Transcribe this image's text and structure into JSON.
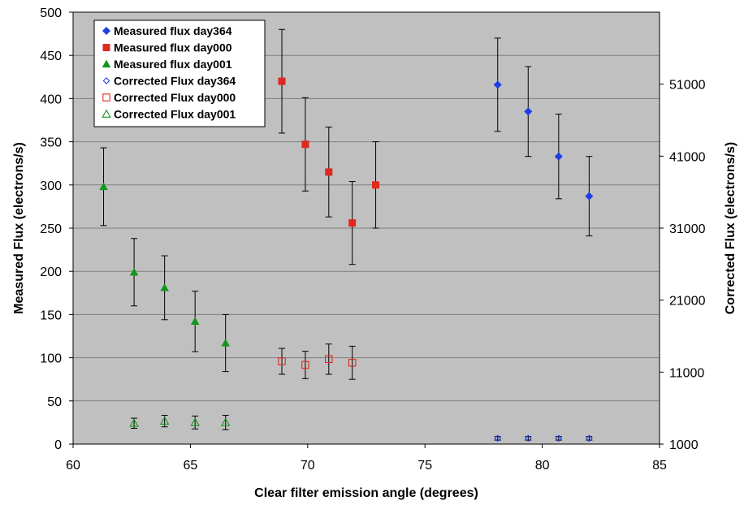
{
  "chart_data": {
    "type": "scatter",
    "xlabel": "Clear filter emission angle (degrees)",
    "ylabel": "Measured Flux (electrons/s)",
    "y2label": "Corrected Flux (electrons/s)",
    "xlim": [
      60,
      85
    ],
    "ylim": [
      0,
      500
    ],
    "y2lim": [
      1000,
      61000
    ],
    "x_ticks": [
      "60",
      "65",
      "70",
      "75",
      "80",
      "85"
    ],
    "y_ticks": [
      "0",
      "50",
      "100",
      "150",
      "200",
      "250",
      "300",
      "350",
      "400",
      "450",
      "500"
    ],
    "y2_ticks": [
      "1000",
      "11000",
      "21000",
      "31000",
      "41000",
      "51000"
    ],
    "grid": true,
    "plot_background": "#c0c0c0",
    "legend_position": "top-left",
    "series": [
      {
        "name": "Measured flux day364",
        "axis": "left",
        "marker": "diamond",
        "filled": true,
        "color": "#1f3fe6",
        "x": [
          78.1,
          79.4,
          80.7,
          82.0
        ],
        "y": [
          416,
          385,
          333,
          287
        ],
        "yerr": [
          54,
          52,
          49,
          46
        ]
      },
      {
        "name": "Measured flux day000",
        "axis": "left",
        "marker": "square",
        "filled": true,
        "color": "#e0281e",
        "x": [
          68.9,
          69.9,
          70.9,
          71.9,
          72.9
        ],
        "y": [
          420,
          347,
          315,
          256,
          300
        ],
        "yerr": [
          60,
          54,
          52,
          48,
          50
        ]
      },
      {
        "name": "Measured flux day001",
        "axis": "left",
        "marker": "triangle",
        "filled": true,
        "color": "#14961e",
        "x": [
          61.3,
          62.6,
          63.9,
          65.2,
          66.5
        ],
        "y": [
          298,
          199,
          181,
          142,
          117
        ],
        "yerr": [
          45,
          39,
          37,
          35,
          33
        ]
      },
      {
        "name": "Corrected Flux day364",
        "axis": "right",
        "marker": "diamond",
        "filled": false,
        "color": "#1f3fe6",
        "x": [
          78.1,
          79.4,
          80.7,
          82.0
        ],
        "y": [
          1800,
          1800,
          1800,
          1800
        ],
        "yerr": [
          250,
          250,
          250,
          250
        ]
      },
      {
        "name": "Corrected Flux day000",
        "axis": "right",
        "marker": "square",
        "filled": false,
        "color": "#e0281e",
        "x": [
          68.9,
          69.9,
          70.9,
          71.9
        ],
        "y": [
          12500,
          12000,
          12800,
          12300
        ],
        "yerr": [
          1800,
          1900,
          2100,
          2300
        ]
      },
      {
        "name": "Corrected Flux day001",
        "axis": "right",
        "marker": "triangle",
        "filled": false,
        "color": "#14961e",
        "x": [
          62.6,
          63.9,
          65.2,
          66.5
        ],
        "y": [
          3900,
          4200,
          4000,
          4000
        ],
        "yerr": [
          700,
          800,
          900,
          1000
        ]
      }
    ]
  }
}
